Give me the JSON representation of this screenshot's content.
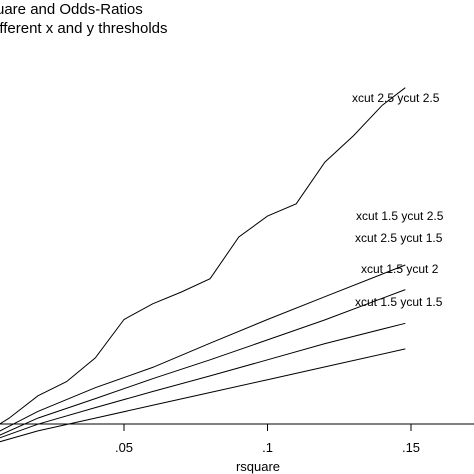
{
  "chart_data": {
    "type": "line",
    "title_lines": [
      "uare and Odds-Ratios",
      "ifferent x and y thresholds"
    ],
    "xlabel": "rsquare",
    "ylabel": "",
    "x_ticks": [
      {
        "value": 0.05,
        "label": ".05"
      },
      {
        "value": 0.1,
        "label": ".1"
      },
      {
        "value": 0.15,
        "label": ".15"
      }
    ],
    "xlim": [
      0.0,
      0.18
    ],
    "ylim": [
      0.0,
      1.0
    ],
    "grid": false,
    "legend": "none",
    "series": [
      {
        "name": "xcut 2.5 ycut 2.5",
        "x": [
          0.002,
          0.01,
          0.02,
          0.03,
          0.04,
          0.05,
          0.06,
          0.07,
          0.08,
          0.09,
          0.1,
          0.11,
          0.12,
          0.13,
          0.14,
          0.148
        ],
        "y": [
          0.088,
          0.118,
          0.165,
          0.195,
          0.245,
          0.326,
          0.359,
          0.384,
          0.412,
          0.5,
          0.544,
          0.57,
          0.658,
          0.714,
          0.778,
          0.815
        ]
      },
      {
        "name": "xcut 1.5 ycut 2.5",
        "x": [
          0.002,
          0.02,
          0.04,
          0.06,
          0.08,
          0.1,
          0.12,
          0.148
        ],
        "y": [
          0.076,
          0.132,
          0.182,
          0.225,
          0.276,
          0.326,
          0.374,
          0.441
        ]
      },
      {
        "name": "xcut 2.5 ycut 1.5",
        "x": [
          0.002,
          0.02,
          0.04,
          0.06,
          0.08,
          0.1,
          0.12,
          0.148
        ],
        "y": [
          0.069,
          0.118,
          0.159,
          0.201,
          0.241,
          0.283,
          0.325,
          0.389
        ]
      },
      {
        "name": "xcut 1.5 ycut 2",
        "x": [
          0.002,
          0.02,
          0.04,
          0.06,
          0.08,
          0.1,
          0.12,
          0.148
        ],
        "y": [
          0.066,
          0.105,
          0.14,
          0.174,
          0.207,
          0.241,
          0.275,
          0.318
        ]
      },
      {
        "name": "xcut 1.5 ycut 1.5",
        "x": [
          0.002,
          0.02,
          0.04,
          0.06,
          0.08,
          0.1,
          0.12,
          0.148
        ],
        "y": [
          0.06,
          0.091,
          0.118,
          0.145,
          0.172,
          0.199,
          0.226,
          0.264
        ]
      }
    ]
  }
}
